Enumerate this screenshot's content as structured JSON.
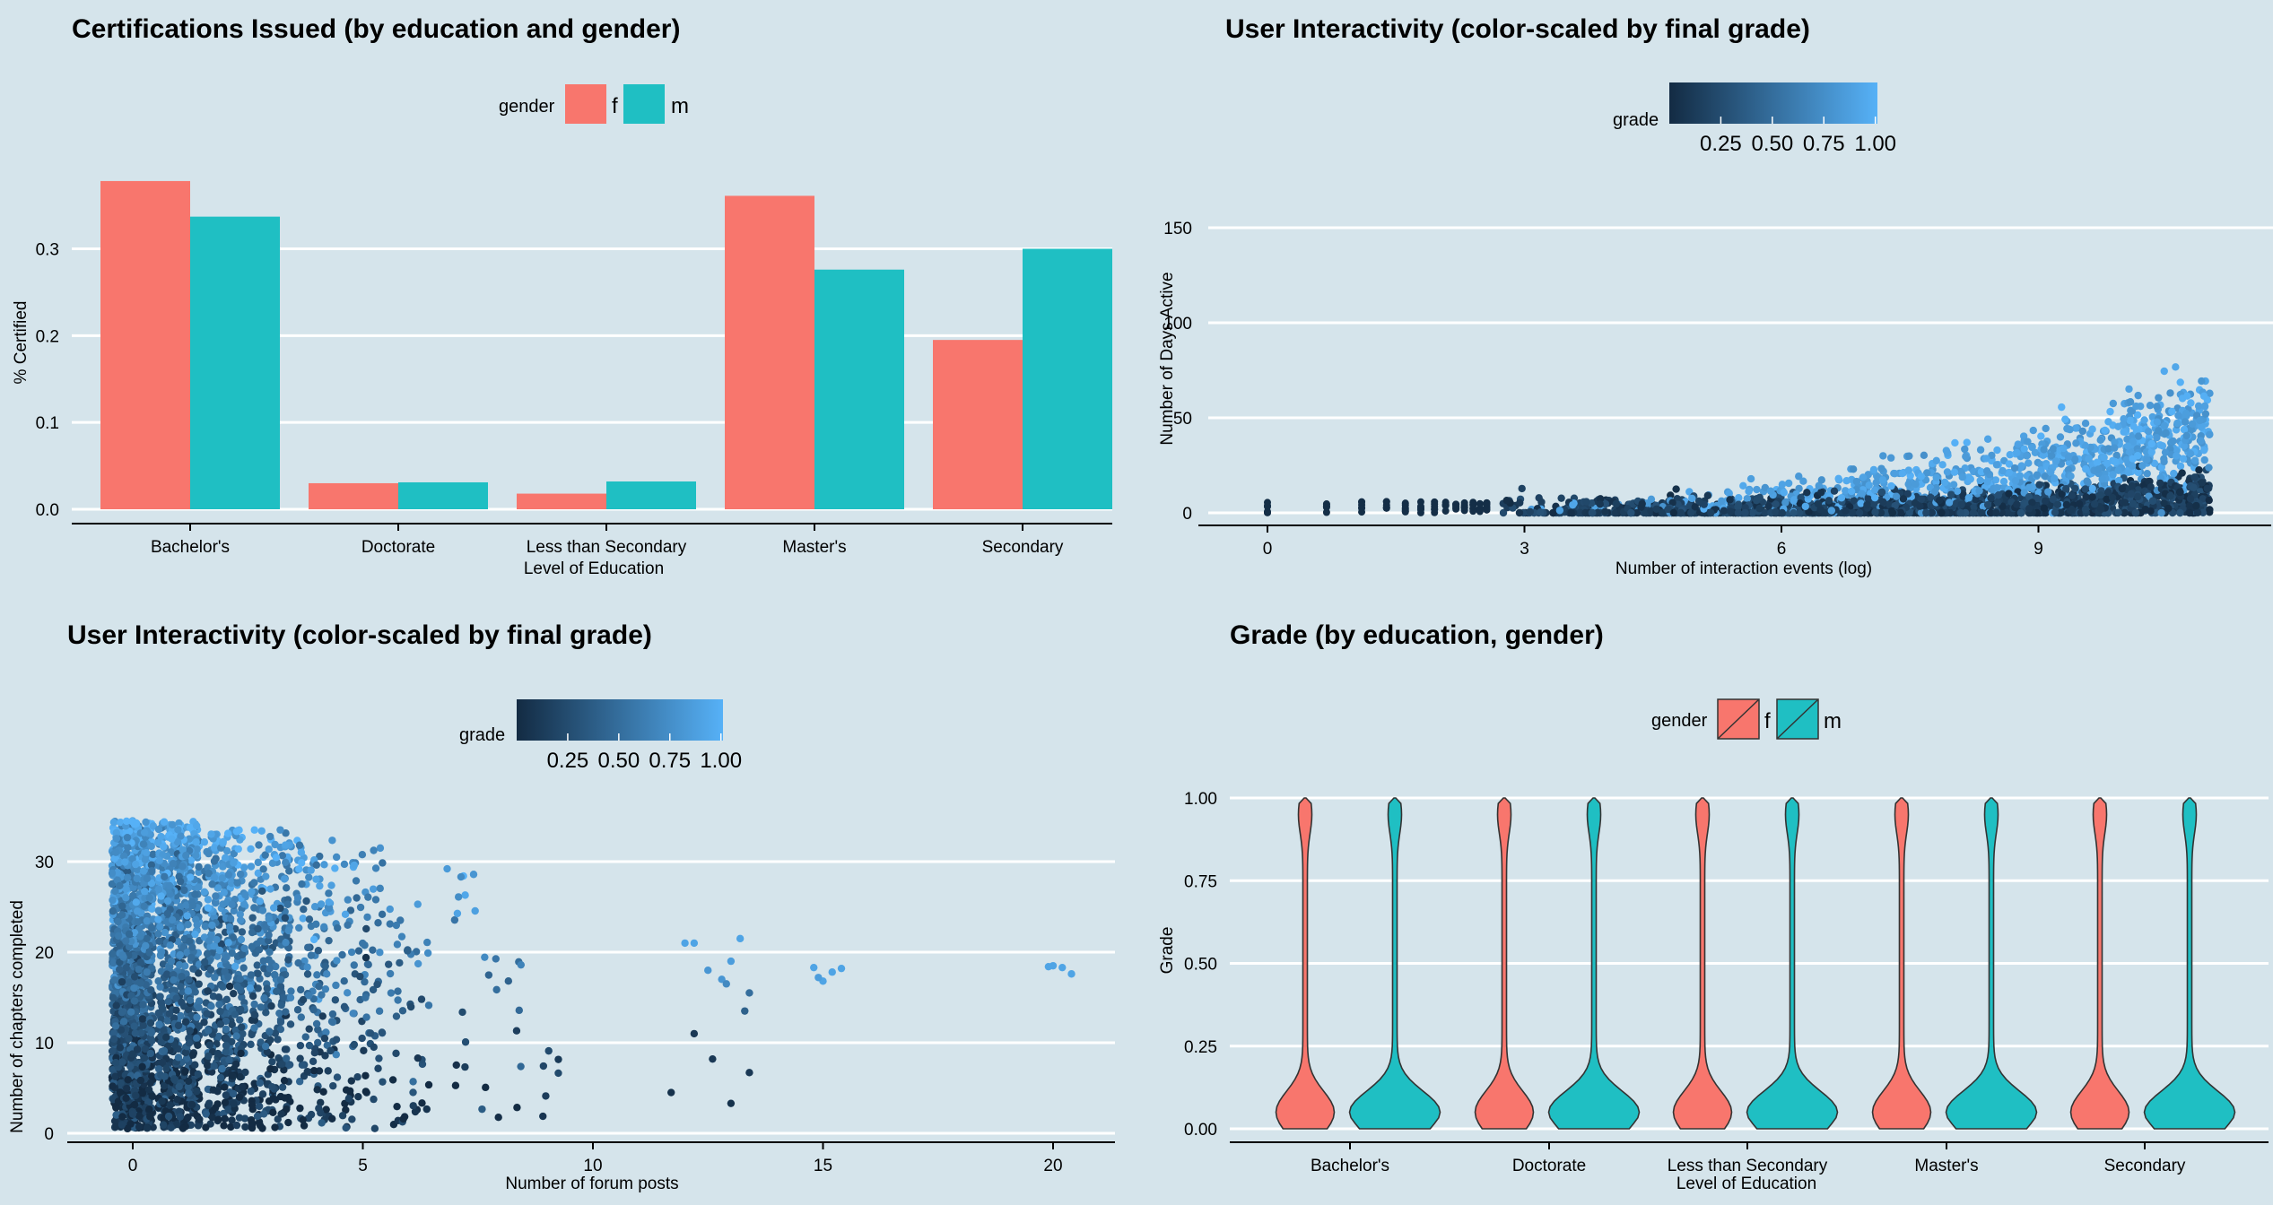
{
  "colors": {
    "background": "#d5e4eb",
    "female": "#f8766d",
    "male": "#1fbfc3",
    "grade_low": "#132b43",
    "grade_high": "#56b1f7",
    "grid": "#ffffff"
  },
  "chart_data": [
    {
      "type": "bar",
      "title": "Certifications Issued (by education and gender)",
      "xlabel": "Level of Education",
      "ylabel": "% Certified",
      "categories": [
        "Bachelor's",
        "Doctorate",
        "Less than Secondary",
        "Master's",
        "Secondary"
      ],
      "series": [
        {
          "name": "f",
          "values": [
            0.378,
            0.03,
            0.018,
            0.361,
            0.195
          ]
        },
        {
          "name": "m",
          "values": [
            0.337,
            0.031,
            0.032,
            0.276,
            0.3
          ]
        }
      ],
      "legend_title": "gender",
      "legend_position": "top",
      "ylim": [
        0,
        0.38
      ],
      "yticks": [
        "0.0",
        "0.1",
        "0.2",
        "0.3"
      ],
      "grid": true
    },
    {
      "type": "scatter",
      "title": "User Interactivity (color-scaled by final grade)",
      "xlabel": "Number of interaction events (log)",
      "ylabel": "Number of Days Active",
      "xticks": [
        "0",
        "3",
        "6",
        "9"
      ],
      "yticks": [
        "0",
        "50",
        "100",
        "150"
      ],
      "xlim": [
        0,
        11.2
      ],
      "ylim": [
        0,
        160
      ],
      "color_legend": {
        "title": "grade",
        "ticks": [
          "0.25",
          "0.50",
          "0.75",
          "1.00"
        ],
        "position": "top"
      },
      "grid": true
    },
    {
      "type": "scatter",
      "title": "User Interactivity (color-scaled by final grade)",
      "xlabel": "Number of forum posts",
      "ylabel": "Number of chapters completed",
      "xticks": [
        "0",
        "5",
        "10",
        "15",
        "20"
      ],
      "yticks": [
        "0",
        "10",
        "20",
        "30"
      ],
      "xlim": [
        0,
        20.5
      ],
      "ylim": [
        0,
        35
      ],
      "color_legend": {
        "title": "grade",
        "ticks": [
          "0.25",
          "0.50",
          "0.75",
          "1.00"
        ],
        "position": "top"
      },
      "grid": true
    },
    {
      "type": "violin",
      "title": "Grade (by education, gender)",
      "xlabel": "Level of Education",
      "ylabel": "Grade",
      "categories": [
        "Bachelor's",
        "Doctorate",
        "Less than Secondary",
        "Master's",
        "Secondary"
      ],
      "series": [
        {
          "name": "f"
        },
        {
          "name": "m"
        }
      ],
      "yticks": [
        "0.00",
        "0.25",
        "0.50",
        "0.75",
        "1.00"
      ],
      "ylim": [
        0,
        1
      ],
      "legend_title": "gender",
      "legend_position": "top",
      "grid": true
    }
  ]
}
